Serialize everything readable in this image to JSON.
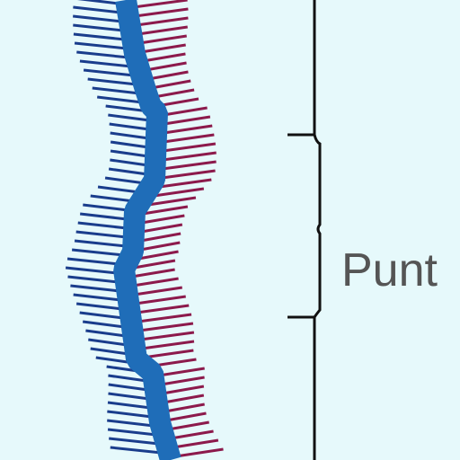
{
  "labels": {
    "bracket_label": "Punt"
  }
}
